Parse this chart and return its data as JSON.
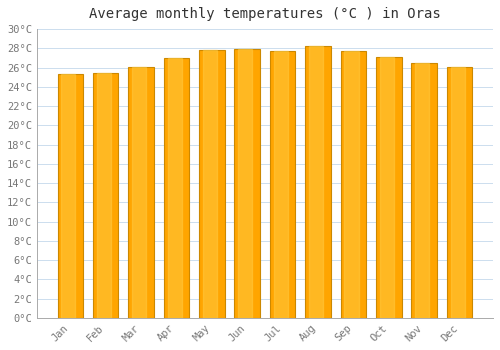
{
  "title": "Average monthly temperatures (°C ) in Oras",
  "months": [
    "Jan",
    "Feb",
    "Mar",
    "Apr",
    "May",
    "Jun",
    "Jul",
    "Aug",
    "Sep",
    "Oct",
    "Nov",
    "Dec"
  ],
  "temperatures": [
    25.3,
    25.4,
    26.1,
    27.0,
    27.8,
    27.9,
    27.7,
    28.2,
    27.7,
    27.1,
    26.5,
    26.1
  ],
  "ylim": [
    0,
    30
  ],
  "yticks": [
    0,
    2,
    4,
    6,
    8,
    10,
    12,
    14,
    16,
    18,
    20,
    22,
    24,
    26,
    28,
    30
  ],
  "bar_color": "#FFA500",
  "bar_edge_color": "#CC8800",
  "background_color": "#FFFFFF",
  "plot_bg_color": "#FFFFFF",
  "grid_color": "#CCDDEE",
  "title_fontsize": 10,
  "tick_fontsize": 7.5,
  "font_family": "monospace",
  "title_color": "#333333",
  "tick_color": "#777777"
}
